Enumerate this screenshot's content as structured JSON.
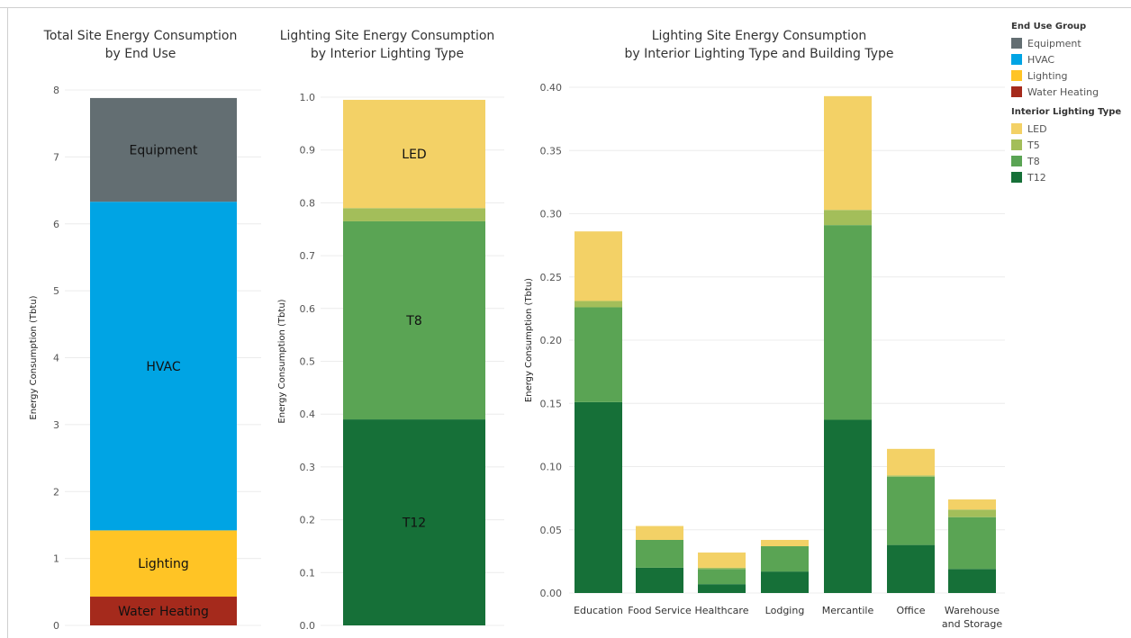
{
  "chart_data": [
    {
      "type": "bar",
      "stacked": true,
      "title": "Total Site Energy Consumption\nby End Use",
      "ylabel": "Energy Consumption (Tbtu)",
      "ylim": [
        0,
        8
      ],
      "yticks": [
        0,
        1,
        2,
        3,
        4,
        5,
        6,
        7,
        8
      ],
      "categories": [
        ""
      ],
      "series": [
        {
          "name": "Water Heating",
          "values": [
            0.43
          ],
          "color": "#A52A1C"
        },
        {
          "name": "Lighting",
          "values": [
            0.99
          ],
          "color": "#FFC425"
        },
        {
          "name": "HVAC",
          "values": [
            4.91
          ],
          "color": "#00A4E4"
        },
        {
          "name": "Equipment",
          "values": [
            1.55
          ],
          "color": "#636E72"
        }
      ]
    },
    {
      "type": "bar",
      "stacked": true,
      "title": "Lighting Site Energy Consumption\nby Interior Lighting Type",
      "ylabel": "Energy Consumption (Tbtu)",
      "ylim": [
        0,
        1.0
      ],
      "yticks": [
        0.0,
        0.1,
        0.2,
        0.3,
        0.4,
        0.5,
        0.6,
        0.7,
        0.8,
        0.9,
        1.0
      ],
      "tick_decimals": 1,
      "categories": [
        ""
      ],
      "series": [
        {
          "name": "T12",
          "values": [
            0.39
          ],
          "color": "#167038"
        },
        {
          "name": "T8",
          "values": [
            0.375
          ],
          "color": "#5AA454"
        },
        {
          "name": "T5",
          "values": [
            0.025
          ],
          "color": "#A3BE5A"
        },
        {
          "name": "LED",
          "values": [
            0.205
          ],
          "color": "#F3D166"
        }
      ]
    },
    {
      "type": "bar",
      "stacked": true,
      "title": "Lighting Site Energy Consumption\nby Interior Lighting Type and Building Type",
      "ylabel": "Energy Consumption (Tbtu)",
      "ylim": [
        0,
        0.4
      ],
      "yticks": [
        0.0,
        0.05,
        0.1,
        0.15,
        0.2,
        0.25,
        0.3,
        0.35,
        0.4
      ],
      "tick_decimals": 2,
      "categories": [
        "Education",
        "Food Service",
        "Healthcare",
        "Lodging",
        "Mercantile",
        "Office",
        "Warehouse\nand Storage"
      ],
      "series": [
        {
          "name": "T12",
          "values": [
            0.151,
            0.02,
            0.007,
            0.017,
            0.137,
            0.038,
            0.019
          ],
          "color": "#167038"
        },
        {
          "name": "T8",
          "values": [
            0.075,
            0.022,
            0.012,
            0.02,
            0.154,
            0.054,
            0.041
          ],
          "color": "#5AA454"
        },
        {
          "name": "T5",
          "values": [
            0.005,
            0.0,
            0.001,
            0.0,
            0.012,
            0.001,
            0.006
          ],
          "color": "#A3BE5A"
        },
        {
          "name": "LED",
          "values": [
            0.055,
            0.011,
            0.012,
            0.005,
            0.09,
            0.021,
            0.008
          ],
          "color": "#F3D166"
        }
      ]
    }
  ],
  "legend": {
    "groups": [
      {
        "title": "End Use Group",
        "items": [
          {
            "label": "Equipment",
            "color": "#636E72"
          },
          {
            "label": "HVAC",
            "color": "#00A4E4"
          },
          {
            "label": "Lighting",
            "color": "#FFC425"
          },
          {
            "label": "Water Heating",
            "color": "#A52A1C"
          }
        ]
      },
      {
        "title": "Interior Lighting Type",
        "items": [
          {
            "label": "LED",
            "color": "#F3D166"
          },
          {
            "label": "T5",
            "color": "#A3BE5A"
          },
          {
            "label": "T8",
            "color": "#5AA454"
          },
          {
            "label": "T12",
            "color": "#167038"
          }
        ]
      }
    ]
  }
}
